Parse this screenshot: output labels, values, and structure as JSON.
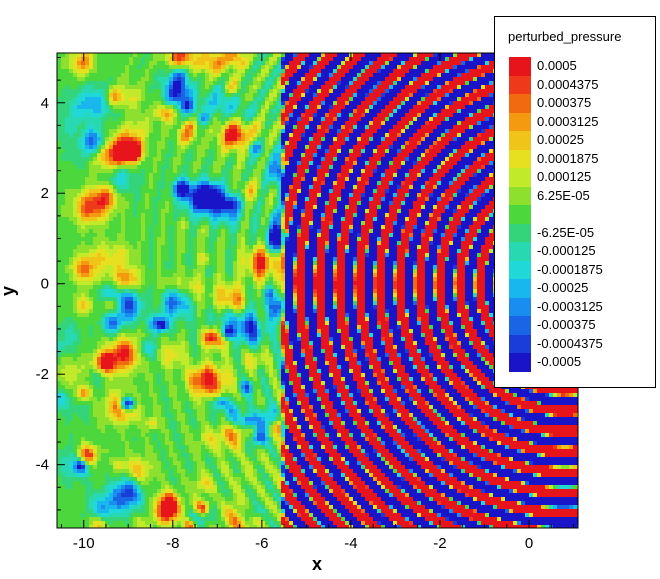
{
  "chart_data": {
    "type": "heatmap",
    "title": "",
    "xlabel": "x",
    "ylabel": "y",
    "xlim": [
      -10.6,
      1.1
    ],
    "ylim": [
      -5.4,
      5.1
    ],
    "x_ticks": [
      "-10",
      "-8",
      "-6",
      "-4",
      "-2",
      "0"
    ],
    "x_tick_values": [
      -10,
      -8,
      -6,
      -4,
      -2,
      0
    ],
    "y_ticks": [
      "4",
      "2",
      "0",
      "-2",
      "-4"
    ],
    "y_tick_values": [
      4,
      2,
      0,
      -2,
      -4
    ],
    "legend": {
      "title": "perturbed_pressure",
      "placement": "top-right",
      "levels": [
        "0.0005",
        "0.0004375",
        "0.000375",
        "0.0003125",
        "0.00025",
        "0.0001875",
        "0.000125",
        "6.25E-05",
        "",
        "-6.25E-05",
        "-0.000125",
        "-0.0001875",
        "-0.00025",
        "-0.0003125",
        "-0.000375",
        "-0.0004375",
        "-0.0005"
      ],
      "colors": [
        "#e8141c",
        "#ee3a1a",
        "#f26a10",
        "#f49a10",
        "#f0c418",
        "#e6e020",
        "#c0ea2a",
        "#8ee02e",
        "#4cd83c",
        "#34d47a",
        "#28d8b0",
        "#20d8d8",
        "#18b8ee",
        "#1a8ef0",
        "#1a64e6",
        "#1a3cd8",
        "#1a14c8"
      ]
    },
    "field": {
      "description_values": "perturbed pressure contour field; wavefronts centered near x=0.8, y=0, wavelength about 0.45, amplitude exceeding legend range within x in [-5.6, 1.1], damped and noisy for x < -5.6",
      "source_x": 0.8,
      "source_y": 0,
      "wavelength": 0.45,
      "saturated_region_xmin": -5.6
    }
  }
}
